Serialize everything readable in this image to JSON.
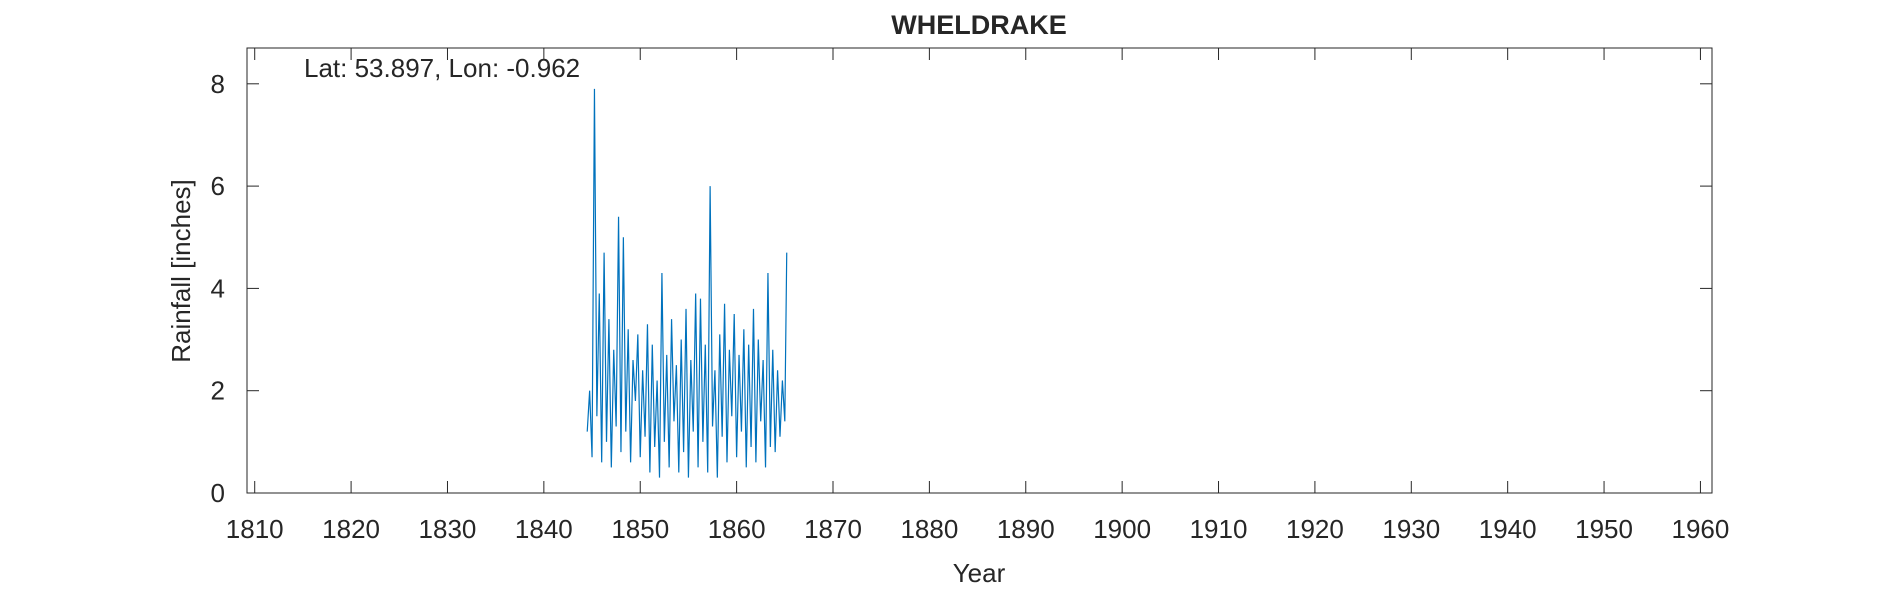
{
  "chart_data": {
    "type": "line",
    "title": "WHELDRAKE",
    "annotation": "Lat: 53.897, Lon: -0.962",
    "xlabel": "Year",
    "ylabel": "Rainfall [inches]",
    "xlim": [
      1809.2,
      1961.2
    ],
    "ylim": [
      0,
      8.7
    ],
    "xticks": [
      1810,
      1820,
      1830,
      1840,
      1850,
      1860,
      1870,
      1880,
      1890,
      1900,
      1910,
      1920,
      1930,
      1940,
      1950,
      1960
    ],
    "yticks": [
      0,
      2,
      4,
      6,
      8
    ],
    "x": [
      1844.5,
      1844.75,
      1845,
      1845.25,
      1845.5,
      1845.75,
      1846,
      1846.25,
      1846.5,
      1846.75,
      1847,
      1847.25,
      1847.5,
      1847.75,
      1848,
      1848.25,
      1848.5,
      1848.75,
      1849,
      1849.25,
      1849.5,
      1849.75,
      1850,
      1850.25,
      1850.5,
      1850.75,
      1851,
      1851.25,
      1851.5,
      1851.75,
      1852,
      1852.25,
      1852.5,
      1852.75,
      1853,
      1853.25,
      1853.5,
      1853.75,
      1854,
      1854.25,
      1854.5,
      1854.75,
      1855,
      1855.25,
      1855.5,
      1855.75,
      1856,
      1856.25,
      1856.5,
      1856.75,
      1857,
      1857.25,
      1857.5,
      1857.75,
      1858,
      1858.25,
      1858.5,
      1858.75,
      1859,
      1859.25,
      1859.5,
      1859.75,
      1860,
      1860.25,
      1860.5,
      1860.75,
      1861,
      1861.25,
      1861.5,
      1861.75,
      1862,
      1862.25,
      1862.5,
      1862.75,
      1863,
      1863.25,
      1863.5,
      1863.75,
      1864,
      1864.25,
      1864.5,
      1864.75,
      1865,
      1865.2
    ],
    "series": [
      {
        "color": "#0072bd",
        "values": [
          1.2,
          2.0,
          0.7,
          7.9,
          1.5,
          3.9,
          0.6,
          4.7,
          1.0,
          3.4,
          0.5,
          2.8,
          1.3,
          5.4,
          0.8,
          5.0,
          1.2,
          3.2,
          0.6,
          2.6,
          1.8,
          3.1,
          0.7,
          2.4,
          1.1,
          3.3,
          0.4,
          2.9,
          0.9,
          2.2,
          0.3,
          4.3,
          1.0,
          2.7,
          0.5,
          3.4,
          1.4,
          2.5,
          0.4,
          3.0,
          0.8,
          3.6,
          0.3,
          2.6,
          1.2,
          3.9,
          0.5,
          3.8,
          1.0,
          2.9,
          0.4,
          6.0,
          1.3,
          2.4,
          0.3,
          3.1,
          1.1,
          3.7,
          0.6,
          2.8,
          1.5,
          3.5,
          0.7,
          2.7,
          1.2,
          3.2,
          0.5,
          2.9,
          0.9,
          3.6,
          0.6,
          3.0,
          1.4,
          2.6,
          0.5,
          4.3,
          0.9,
          2.8,
          0.8,
          2.4,
          1.1,
          2.2,
          1.4,
          4.7
        ]
      }
    ]
  }
}
